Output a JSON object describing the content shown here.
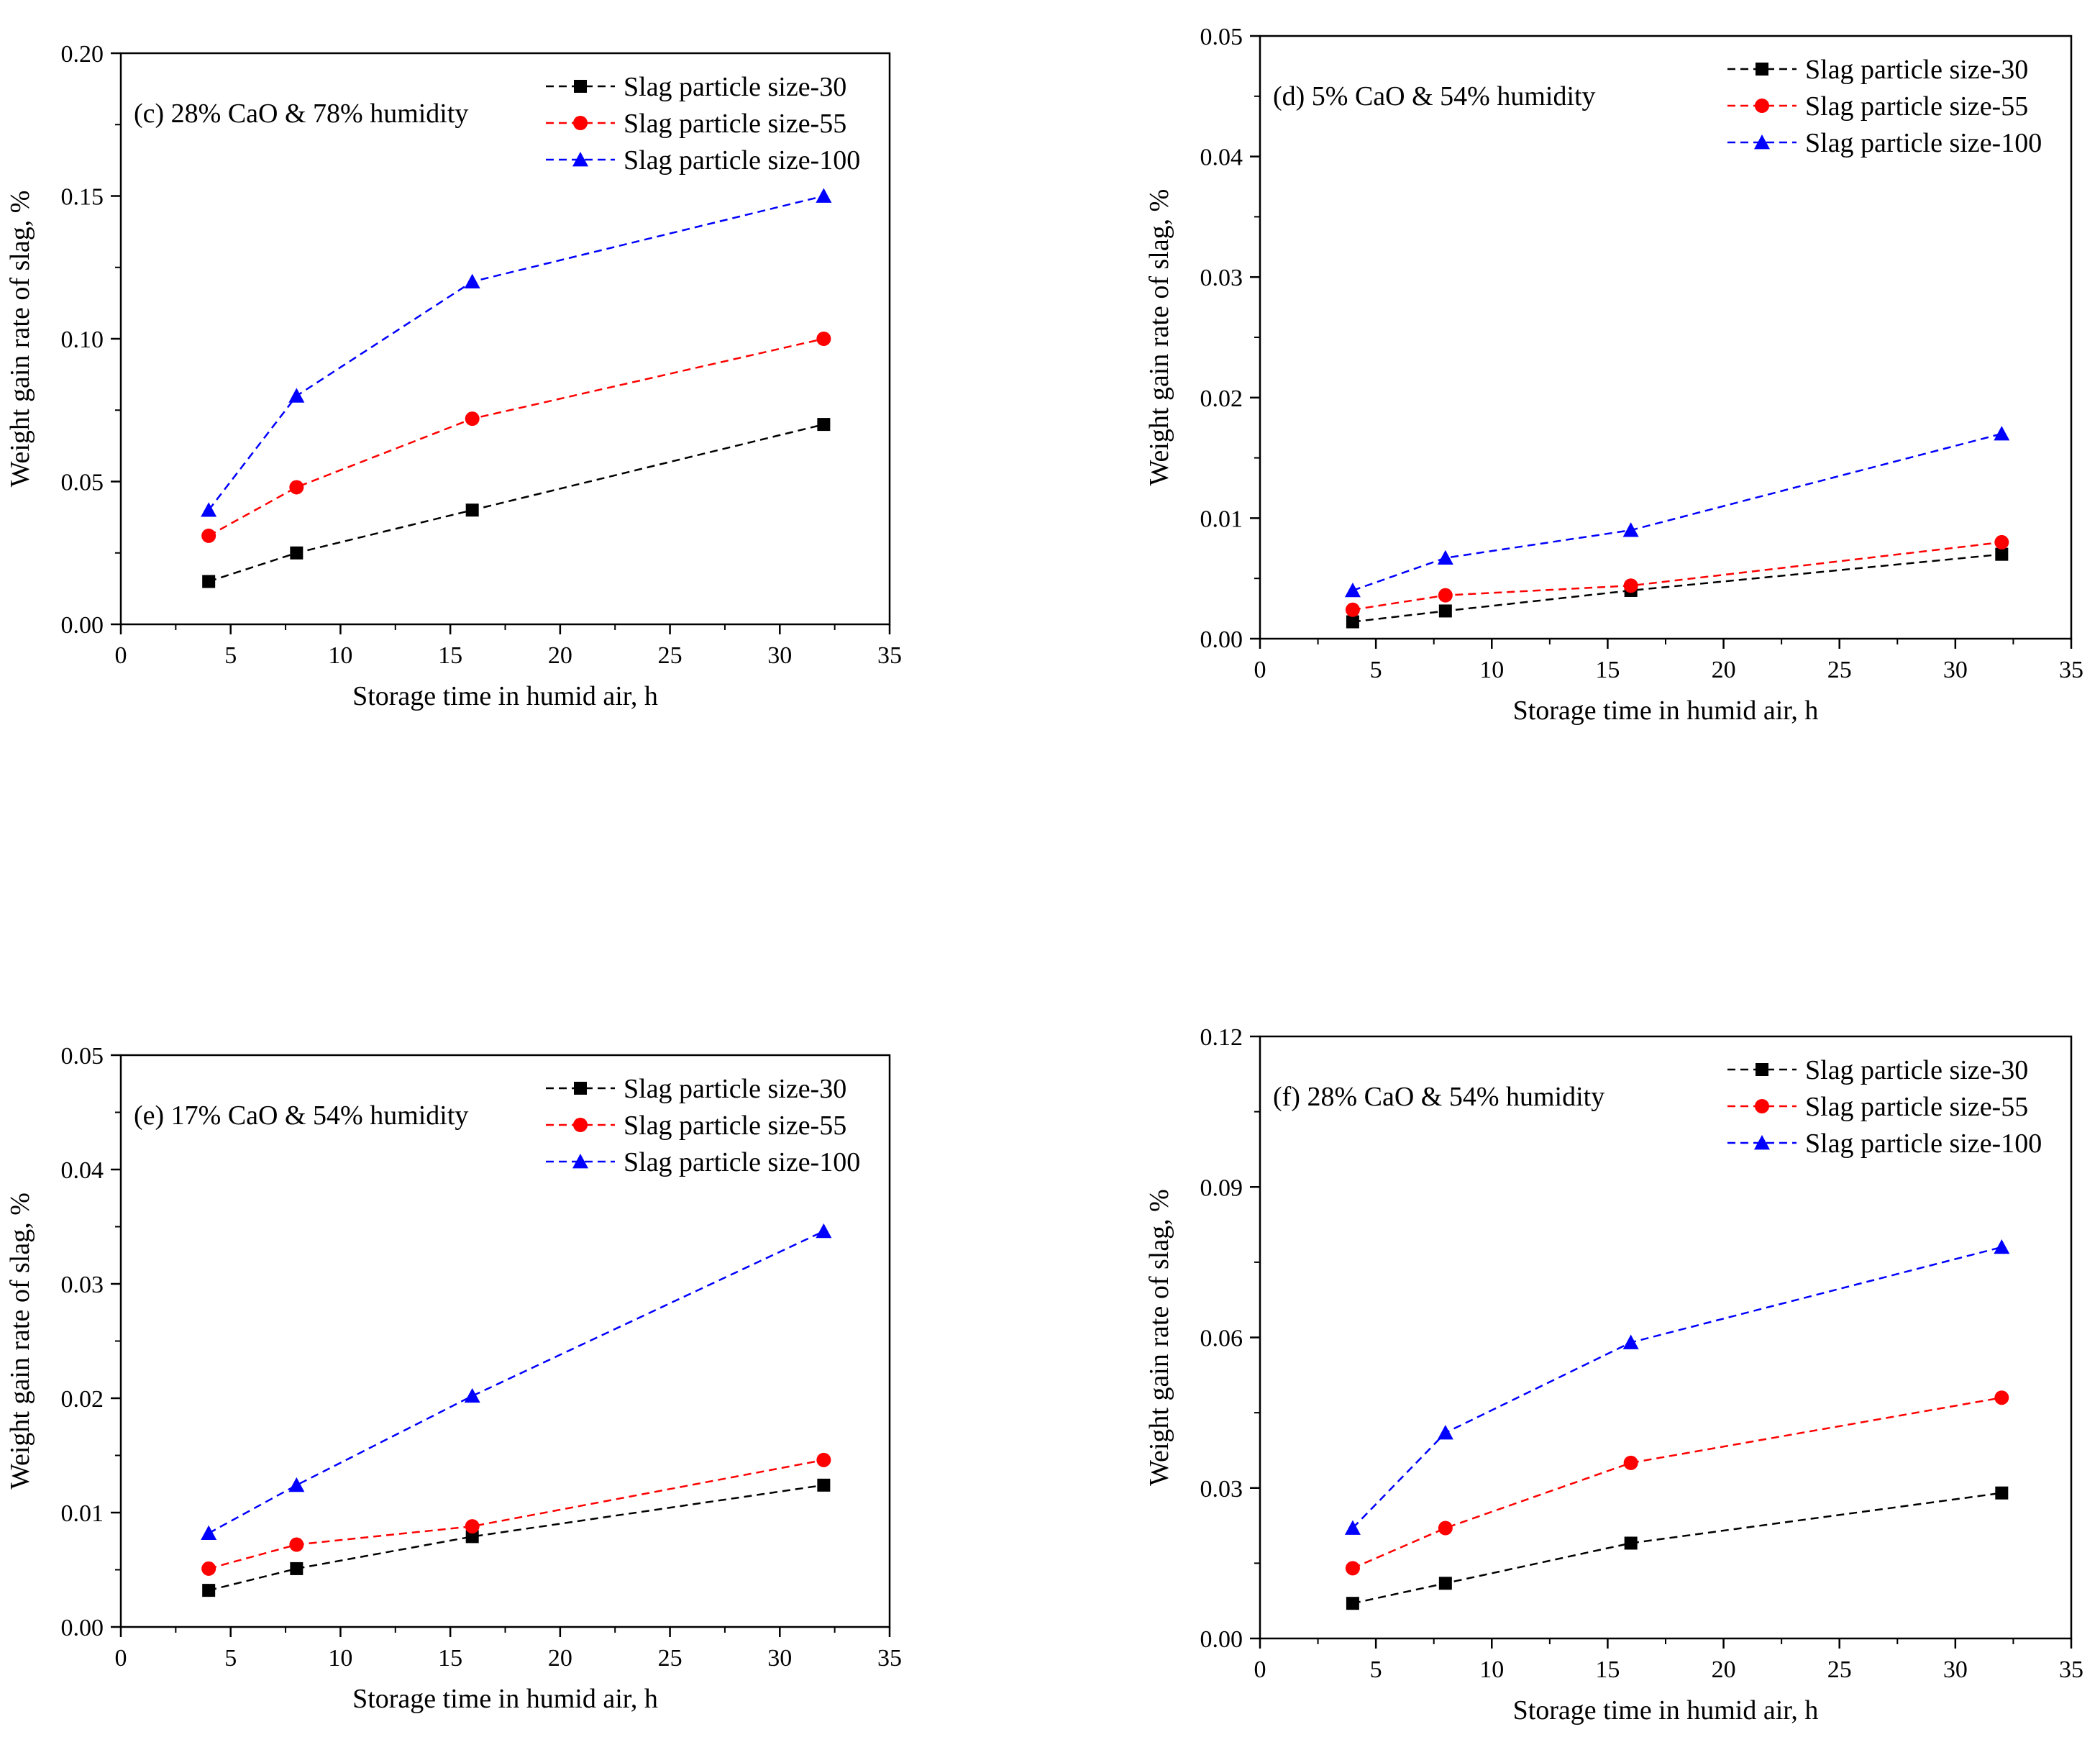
{
  "colors": {
    "series": [
      "#000000",
      "#ff0000",
      "#0000ff"
    ],
    "axis": "#000000"
  },
  "chart_data": [
    {
      "type": "line",
      "title": "(c)  28% CaO & 78% humidity",
      "xlabel": "Storage time in humid air, h",
      "ylabel": "Weight gain rate of slag, %",
      "xlim": [
        0,
        35
      ],
      "ylim": [
        0,
        0.2
      ],
      "xticks": [
        0,
        5,
        10,
        15,
        20,
        25,
        30,
        35
      ],
      "xtick_labels": [
        "0",
        "5",
        "10",
        "15",
        "20",
        "25",
        "30",
        "35"
      ],
      "yticks": [
        0,
        0.05,
        0.1,
        0.15,
        0.2
      ],
      "ytick_labels": [
        "0.00",
        "0.05",
        "0.10",
        "0.15",
        "0.20"
      ],
      "legend_position": "top-right",
      "x": [
        4,
        8,
        16,
        32
      ],
      "series": [
        {
          "name": "Slag particle size-30",
          "marker": "square",
          "values": [
            0.015,
            0.025,
            0.04,
            0.07
          ]
        },
        {
          "name": "Slag particle size-55",
          "marker": "circle",
          "values": [
            0.031,
            0.048,
            0.072,
            0.1
          ]
        },
        {
          "name": "Slag particle size-100",
          "marker": "triangle",
          "values": [
            0.04,
            0.08,
            0.12,
            0.15
          ]
        }
      ]
    },
    {
      "type": "line",
      "title": "(d)   5% CaO & 54% humidity",
      "xlabel": "Storage time in humid air, h",
      "ylabel": "Weight gain rate of slag, %",
      "xlim": [
        0,
        35
      ],
      "ylim": [
        0,
        0.05
      ],
      "xticks": [
        0,
        5,
        10,
        15,
        20,
        25,
        30,
        35
      ],
      "xtick_labels": [
        "0",
        "5",
        "10",
        "15",
        "20",
        "25",
        "30",
        "35"
      ],
      "yticks": [
        0,
        0.01,
        0.02,
        0.03,
        0.04,
        0.05
      ],
      "ytick_labels": [
        "0.00",
        "0.01",
        "0.02",
        "0.03",
        "0.04",
        "0.05"
      ],
      "legend_position": "top-right",
      "x": [
        4,
        8,
        16,
        32
      ],
      "series": [
        {
          "name": "Slag particle size-30",
          "marker": "square",
          "values": [
            0.0014,
            0.0023,
            0.004,
            0.007
          ]
        },
        {
          "name": "Slag particle size-55",
          "marker": "circle",
          "values": [
            0.0024,
            0.0036,
            0.0044,
            0.008
          ]
        },
        {
          "name": "Slag particle size-100",
          "marker": "triangle",
          "values": [
            0.004,
            0.0067,
            0.009,
            0.017
          ]
        }
      ]
    },
    {
      "type": "line",
      "title": "(e)  17% CaO & 54% humidity",
      "xlabel": "Storage time in humid air, h",
      "ylabel": "Weight gain rate of slag, %",
      "xlim": [
        0,
        35
      ],
      "ylim": [
        0,
        0.05
      ],
      "xticks": [
        0,
        5,
        10,
        15,
        20,
        25,
        30,
        35
      ],
      "xtick_labels": [
        "0",
        "5",
        "10",
        "15",
        "20",
        "25",
        "30",
        "35"
      ],
      "yticks": [
        0,
        0.01,
        0.02,
        0.03,
        0.04,
        0.05
      ],
      "ytick_labels": [
        "0.00",
        "0.01",
        "0.02",
        "0.03",
        "0.04",
        "0.05"
      ],
      "legend_position": "top-right",
      "x": [
        4,
        8,
        16,
        32
      ],
      "series": [
        {
          "name": "Slag particle size-30",
          "marker": "square",
          "values": [
            0.0032,
            0.0051,
            0.0079,
            0.0124
          ]
        },
        {
          "name": "Slag particle size-55",
          "marker": "circle",
          "values": [
            0.0051,
            0.0072,
            0.0088,
            0.0146
          ]
        },
        {
          "name": "Slag particle size-100",
          "marker": "triangle",
          "values": [
            0.0082,
            0.0124,
            0.0202,
            0.0346
          ]
        }
      ]
    },
    {
      "type": "line",
      "title": "(f)  28% CaO & 54% humidity",
      "xlabel": "Storage time in humid air, h",
      "ylabel": "Weight gain rate of slag, %",
      "xlim": [
        0,
        35
      ],
      "ylim": [
        0,
        0.12
      ],
      "xticks": [
        0,
        5,
        10,
        15,
        20,
        25,
        30,
        35
      ],
      "xtick_labels": [
        "0",
        "5",
        "10",
        "15",
        "20",
        "25",
        "30",
        "35"
      ],
      "yticks": [
        0,
        0.03,
        0.06,
        0.09,
        0.12
      ],
      "ytick_labels": [
        "0.00",
        "0.03",
        "0.06",
        "0.09",
        "0.12"
      ],
      "legend_position": "top-right",
      "x": [
        4,
        8,
        16,
        32
      ],
      "series": [
        {
          "name": "Slag particle size-30",
          "marker": "square",
          "values": [
            0.007,
            0.011,
            0.019,
            0.029
          ]
        },
        {
          "name": "Slag particle size-55",
          "marker": "circle",
          "values": [
            0.014,
            0.022,
            0.035,
            0.048
          ]
        },
        {
          "name": "Slag particle size-100",
          "marker": "triangle",
          "values": [
            0.022,
            0.041,
            0.059,
            0.078
          ]
        }
      ]
    }
  ]
}
